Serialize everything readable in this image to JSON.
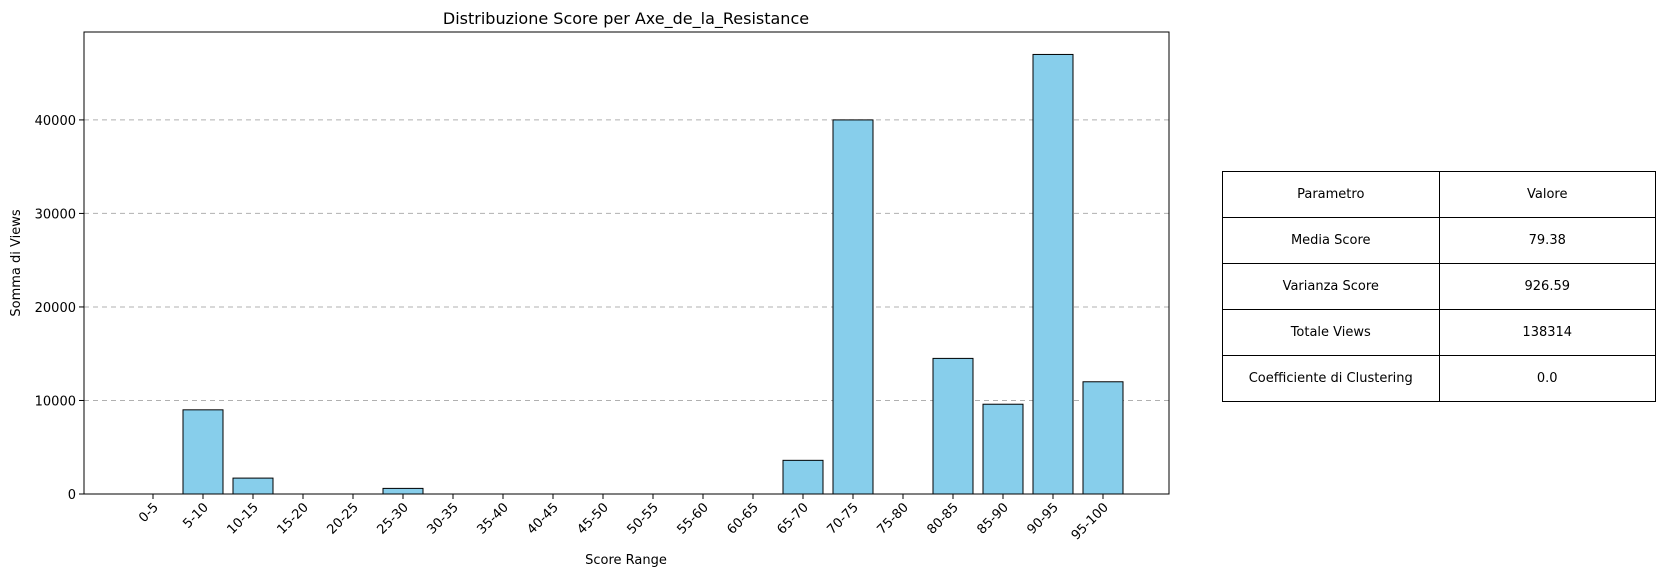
{
  "chart_data": {
    "type": "bar",
    "title": "Distribuzione Score per Axe_de_la_Resistance",
    "xlabel": "Score Range",
    "ylabel": "Somma di Views",
    "categories": [
      "0-5",
      "5-10",
      "10-15",
      "15-20",
      "20-25",
      "25-30",
      "30-35",
      "35-40",
      "40-45",
      "45-50",
      "50-55",
      "55-60",
      "60-65",
      "65-70",
      "70-75",
      "75-80",
      "80-85",
      "85-90",
      "90-95",
      "95-100"
    ],
    "values": [
      0,
      9000,
      1700,
      0,
      0,
      600,
      0,
      0,
      0,
      0,
      0,
      0,
      0,
      3600,
      40000,
      0,
      14500,
      9600,
      47000,
      12000
    ],
    "ylim": [
      0,
      49400
    ],
    "yticks": [
      0,
      10000,
      20000,
      30000,
      40000
    ],
    "grid": "y-dashed",
    "bar_color": "#87ceeb",
    "edge_color": "#000000"
  },
  "table": {
    "header": [
      "Parametro",
      "Valore"
    ],
    "rows": [
      [
        "Media Score",
        "79.38"
      ],
      [
        "Varianza Score",
        "926.59"
      ],
      [
        "Totale Views",
        "138314"
      ],
      [
        "Coefficiente di Clustering",
        "0.0"
      ]
    ]
  }
}
